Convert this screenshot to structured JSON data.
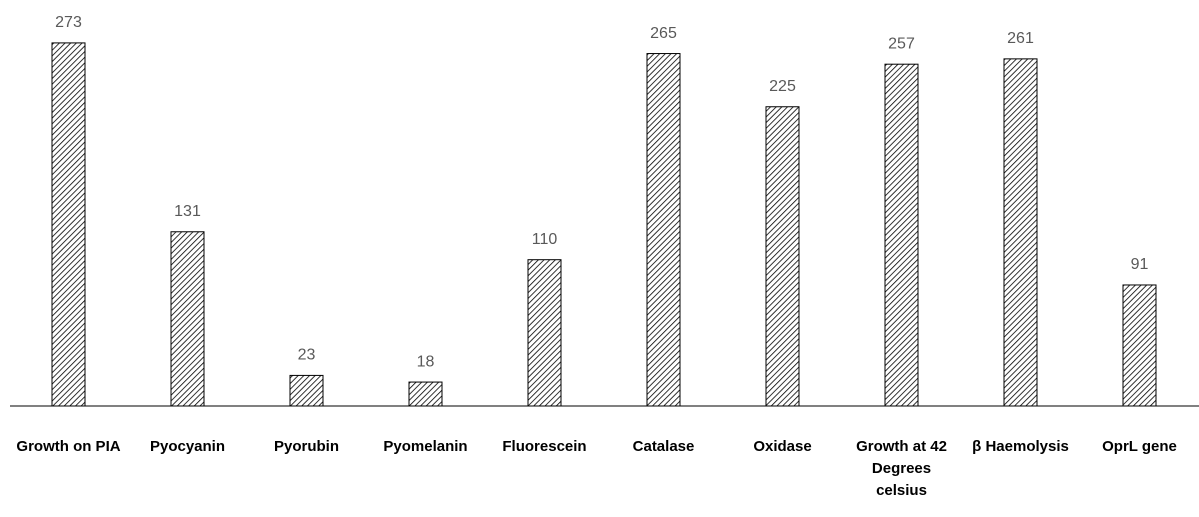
{
  "chart_data": {
    "type": "bar",
    "categories": [
      "Growth on PIA",
      "Pyocyanin",
      "Pyorubin",
      "Pyomelanin",
      "Fluorescein",
      "Catalase",
      "Oxidase",
      "Growth at 42 Degrees celsius",
      "β Haemolysis",
      "OprL gene"
    ],
    "values": [
      273,
      131,
      23,
      18,
      110,
      265,
      225,
      257,
      261,
      91
    ],
    "ylim": [
      0,
      300
    ],
    "grid": false,
    "color": "hatched"
  }
}
